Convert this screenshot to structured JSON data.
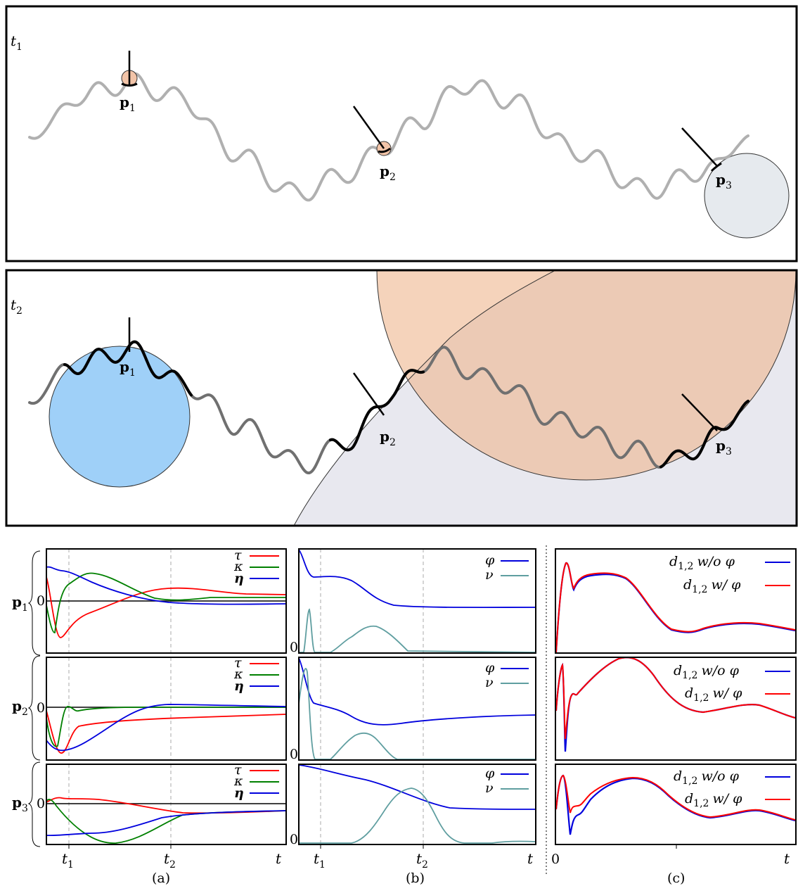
{
  "panels": {
    "top": {
      "label_t": "t",
      "label_sub": "1",
      "points": [
        "p",
        "p",
        "p"
      ],
      "point_subs": [
        "1",
        "2",
        "3"
      ]
    },
    "middle": {
      "label_t": "t",
      "label_sub": "2",
      "points": [
        "p",
        "p",
        "p"
      ],
      "point_subs": [
        "1",
        "2",
        "3"
      ]
    }
  },
  "plots": {
    "row_labels": [
      "p",
      "p",
      "p"
    ],
    "row_subs": [
      "1",
      "2",
      "3"
    ],
    "zero_label": "0",
    "legend_a": [
      "τ",
      "κ",
      "η"
    ],
    "legend_b": [
      "φ",
      "ν"
    ],
    "legend_c": [
      "d",
      "d"
    ],
    "legend_c_sub": [
      "1,2",
      "1,2"
    ],
    "legend_c_suffix": [
      "w/o φ",
      "w/ φ"
    ],
    "colors": {
      "tau": "#ff0000",
      "kappa": "#008000",
      "eta": "#0000dd",
      "phi": "#0000dd",
      "nu": "#5f9ea0",
      "wo": "#0000dd",
      "w": "#ff0000"
    },
    "xticks_ab": [
      "t",
      "t",
      "t"
    ],
    "xtick_subs": [
      "1",
      "2",
      ""
    ],
    "xticks_c": [
      "0",
      "t"
    ],
    "captions": [
      "(a)",
      "(b)",
      "(c)"
    ]
  },
  "chart_data": [
    {
      "type": "line",
      "title": "(a) p1",
      "x": [
        "t1",
        "t2",
        "t"
      ],
      "series": [
        {
          "name": "τ",
          "values": [
            -0.9,
            0.3,
            0.12
          ]
        },
        {
          "name": "κ",
          "values": [
            0.4,
            0.0,
            0.1
          ]
        },
        {
          "name": "η",
          "values": [
            0.85,
            0.2,
            -0.05
          ]
        }
      ]
    },
    {
      "type": "line",
      "title": "(b) p1",
      "x": [
        "t1",
        "t2",
        "t"
      ],
      "series": [
        {
          "name": "φ",
          "values": [
            0.8,
            0.52,
            0.52
          ]
        },
        {
          "name": "ν",
          "values": [
            0.6,
            0.02,
            0.0
          ]
        }
      ]
    },
    {
      "type": "line",
      "title": "(c) p1",
      "x": [
        "0",
        "t"
      ],
      "series": [
        {
          "name": "d1,2 w/o φ"
        },
        {
          "name": "d1,2 w/ φ"
        }
      ]
    }
  ]
}
